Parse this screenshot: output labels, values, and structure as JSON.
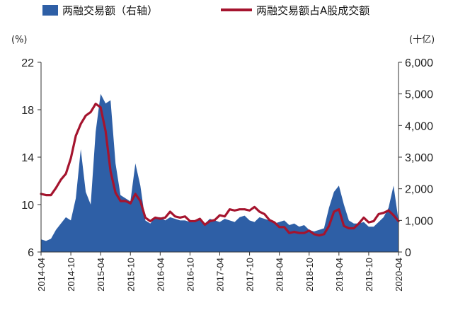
{
  "chart_data": {
    "type": "area+line",
    "x": [
      "2014-04",
      "2014-05",
      "2014-06",
      "2014-07",
      "2014-08",
      "2014-09",
      "2014-10",
      "2014-11",
      "2014-12",
      "2015-01",
      "2015-02",
      "2015-03",
      "2015-04",
      "2015-05",
      "2015-06",
      "2015-07",
      "2015-08",
      "2015-09",
      "2015-10",
      "2015-11",
      "2015-12",
      "2016-01",
      "2016-02",
      "2016-03",
      "2016-04",
      "2016-05",
      "2016-06",
      "2016-07",
      "2016-08",
      "2016-09",
      "2016-10",
      "2016-11",
      "2016-12",
      "2017-01",
      "2017-02",
      "2017-03",
      "2017-04",
      "2017-05",
      "2017-06",
      "2017-07",
      "2017-08",
      "2017-09",
      "2017-10",
      "2017-11",
      "2017-12",
      "2018-01",
      "2018-02",
      "2018-03",
      "2018-04",
      "2018-05",
      "2018-06",
      "2018-07",
      "2018-08",
      "2018-09",
      "2018-10",
      "2018-11",
      "2018-12",
      "2019-01",
      "2019-02",
      "2019-03",
      "2019-04",
      "2019-05",
      "2019-06",
      "2019-07",
      "2019-08",
      "2019-09",
      "2019-10",
      "2019-11",
      "2019-12",
      "2020-01",
      "2020-02",
      "2020-03",
      "2020-04"
    ],
    "x_tick_labels": [
      "2014-04",
      "2014-10",
      "2015-04",
      "2015-10",
      "2016-04",
      "2016-10",
      "2017-04",
      "2017-10",
      "2018-04",
      "2018-10",
      "2019-04",
      "2019-10",
      "2020-04"
    ],
    "y_left": {
      "label": "(%)",
      "min": 6,
      "max": 22,
      "ticks": [
        "6",
        "10",
        "14",
        "18",
        "22"
      ]
    },
    "y_right": {
      "label": "(十亿)",
      "min": 0,
      "max": 6000,
      "ticks": [
        "0",
        "1,000",
        "2,000",
        "3,000",
        "4,000",
        "5,000",
        "6,000"
      ]
    },
    "series": [
      {
        "name": "两融交易额（右轴）",
        "type": "area",
        "axis": "right",
        "color": "#2e5fa6",
        "values": [
          400,
          350,
          420,
          700,
          900,
          1100,
          1000,
          1700,
          3250,
          1900,
          1500,
          3800,
          5000,
          4700,
          4800,
          2800,
          1800,
          1700,
          1600,
          2800,
          2100,
          1000,
          900,
          1100,
          1100,
          1000,
          1100,
          1050,
          1000,
          1000,
          950,
          1000,
          1050,
          900,
          1050,
          1000,
          950,
          1050,
          1000,
          950,
          1100,
          1150,
          1000,
          950,
          1100,
          1050,
          1000,
          900,
          950,
          1000,
          850,
          900,
          800,
          850,
          700,
          650,
          700,
          750,
          1400,
          1900,
          2100,
          1500,
          1000,
          900,
          900,
          950,
          800,
          800,
          950,
          1100,
          1400,
          2100,
          1000
        ]
      },
      {
        "name": "两融交易额占A股成交额",
        "type": "line",
        "axis": "left",
        "color": "#a5142e",
        "values": [
          10.9,
          10.8,
          10.8,
          11.4,
          12.1,
          12.6,
          13.9,
          15.8,
          16.8,
          17.5,
          17.8,
          18.5,
          18.2,
          16.2,
          12.8,
          11.0,
          10.3,
          10.3,
          10.1,
          10.9,
          10.3,
          8.9,
          8.6,
          8.9,
          8.8,
          8.9,
          9.4,
          9.0,
          8.9,
          9.0,
          8.6,
          8.6,
          8.8,
          8.3,
          8.6,
          8.7,
          9.1,
          9.0,
          9.6,
          9.5,
          9.6,
          9.6,
          9.5,
          9.8,
          9.4,
          9.2,
          8.7,
          8.5,
          8.1,
          8.1,
          7.6,
          7.7,
          7.6,
          7.6,
          7.8,
          7.5,
          7.4,
          7.5,
          8.2,
          9.4,
          9.6,
          8.2,
          8.0,
          8.0,
          8.4,
          8.9,
          8.5,
          8.6,
          9.2,
          9.3,
          9.5,
          9.1,
          8.6
        ]
      }
    ],
    "legend": "top"
  }
}
